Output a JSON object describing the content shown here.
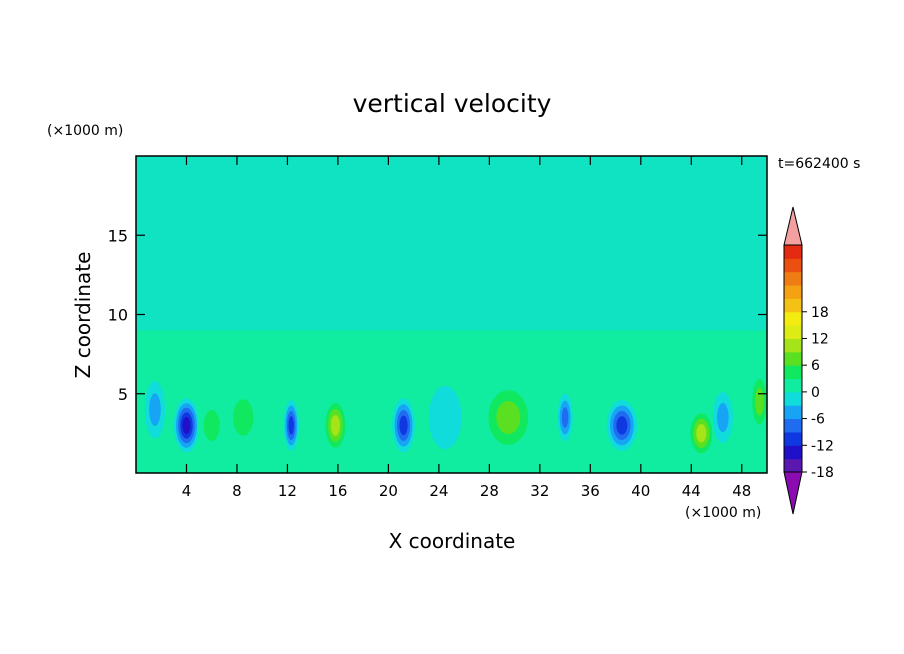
{
  "chart_data": {
    "type": "heatmap",
    "title": "vertical velocity",
    "xlabel": "X coordinate",
    "ylabel": "Z coordinate",
    "x_unit": "(×1000 m)",
    "y_unit": "(×1000 m)",
    "time_label": "t=662400 s",
    "xlim": [
      0,
      50
    ],
    "ylim": [
      0,
      20
    ],
    "x_ticks": [
      4,
      8,
      12,
      16,
      20,
      24,
      28,
      32,
      36,
      40,
      44,
      48
    ],
    "y_ticks": [
      5,
      10,
      15
    ],
    "colorbar": {
      "min": -21,
      "max": 21,
      "step": 3,
      "tick_labels": [
        "18",
        "12",
        "6",
        "0",
        "-6",
        "-12",
        "-18"
      ],
      "tick_values": [
        18,
        12,
        6,
        0,
        -6,
        -12,
        -18
      ],
      "colors": [
        "#8a0bb0",
        "#5a18b0",
        "#2010c8",
        "#1038e0",
        "#1f6cf0",
        "#18a4f4",
        "#10dcdc",
        "#10eca0",
        "#10e860",
        "#5ae020",
        "#a6e41a",
        "#dcec14",
        "#f4ec10",
        "#f4c214",
        "#f4a214",
        "#f07c14",
        "#ec5010",
        "#e42a10",
        "#f4a0a0"
      ]
    },
    "cells": [
      {
        "x": 4,
        "z": 3,
        "value": -14,
        "sx": 1.0,
        "sz": 1.7
      },
      {
        "x": 6,
        "z": 3,
        "value": 6,
        "sx": 1.1,
        "sz": 1.7
      },
      {
        "x": 8.5,
        "z": 3.5,
        "value": 4,
        "sx": 1.4,
        "sz": 2.0
      },
      {
        "x": 12.3,
        "z": 3,
        "value": -11,
        "sx": 0.6,
        "sz": 1.6
      },
      {
        "x": 15.8,
        "z": 3,
        "value": 11,
        "sx": 1.0,
        "sz": 1.8
      },
      {
        "x": 21.2,
        "z": 3,
        "value": -11,
        "sx": 0.9,
        "sz": 1.7
      },
      {
        "x": 24.5,
        "z": 3.5,
        "value": -3,
        "sx": 1.3,
        "sz": 2.0
      },
      {
        "x": 29.5,
        "z": 3.5,
        "value": 7,
        "sx": 2.2,
        "sz": 2.4
      },
      {
        "x": 34,
        "z": 3.5,
        "value": -8,
        "sx": 0.6,
        "sz": 1.5
      },
      {
        "x": 38.5,
        "z": 3,
        "value": -12,
        "sx": 1.2,
        "sz": 1.6
      },
      {
        "x": 44.8,
        "z": 2.5,
        "value": 11,
        "sx": 1.1,
        "sz": 1.6
      },
      {
        "x": 49.4,
        "z": 4.5,
        "value": 9,
        "sx": 0.8,
        "sz": 2.0
      },
      {
        "x": 46.5,
        "z": 3.5,
        "value": -5,
        "sx": 0.8,
        "sz": 1.6
      },
      {
        "x": 1.5,
        "z": 4,
        "value": -4,
        "sx": 0.8,
        "sz": 1.8
      }
    ]
  }
}
